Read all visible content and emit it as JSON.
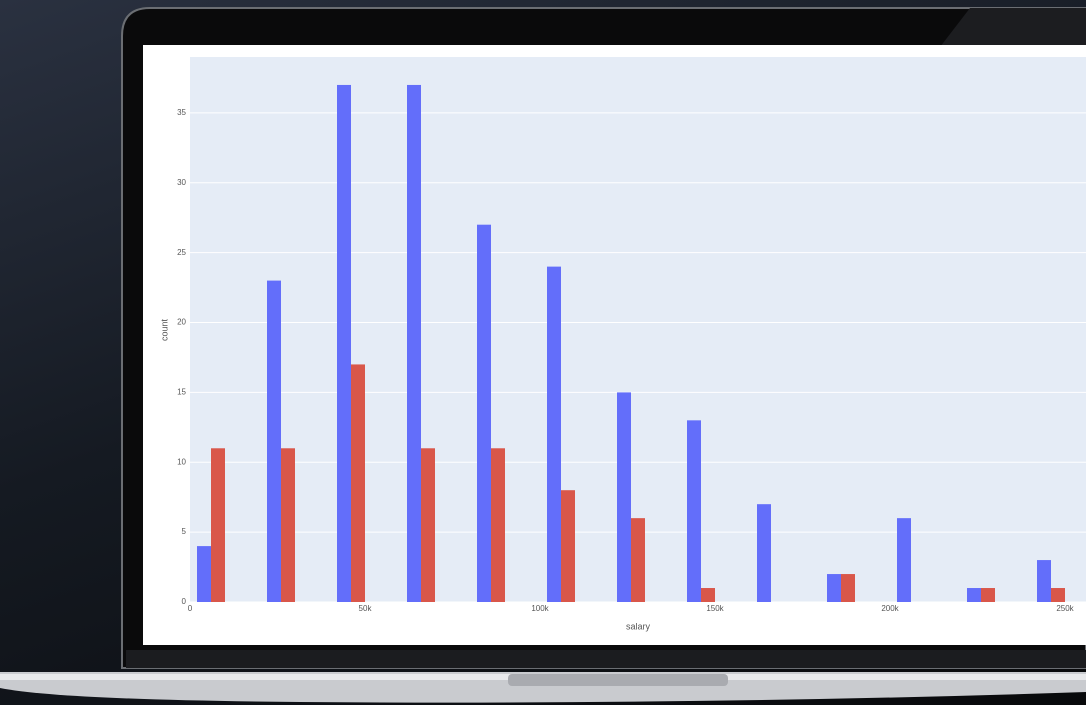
{
  "chart_data": {
    "type": "histogram",
    "x_label": "salary",
    "y_label": "count",
    "bins": [
      -4000,
      16000,
      36000,
      56000,
      76000,
      96000,
      116000,
      136000,
      156000,
      176000,
      196000,
      216000,
      236000,
      256000
    ],
    "series": [
      {
        "color": "#636efa",
        "values": [
          4,
          23,
          37,
          37,
          27,
          24,
          15,
          13,
          7,
          2,
          6,
          1,
          3
        ]
      },
      {
        "color": "#d9574a",
        "values": [
          11,
          11,
          17,
          11,
          11,
          8,
          6,
          1,
          0,
          2,
          0,
          1,
          1
        ]
      }
    ],
    "xlim": [
      0,
      256000
    ],
    "ylim": [
      0,
      39
    ],
    "xticks": [
      0,
      {
        "value": 50000,
        "label": "50k"
      },
      {
        "value": 100000,
        "label": "100k"
      },
      {
        "value": 150000,
        "label": "150k"
      },
      {
        "value": 200000,
        "label": "200k"
      },
      {
        "value": 250000,
        "label": "250k"
      }
    ],
    "yticks": [
      0,
      5,
      10,
      15,
      20,
      25,
      30,
      35
    ],
    "grid": true,
    "barmode": "group"
  }
}
